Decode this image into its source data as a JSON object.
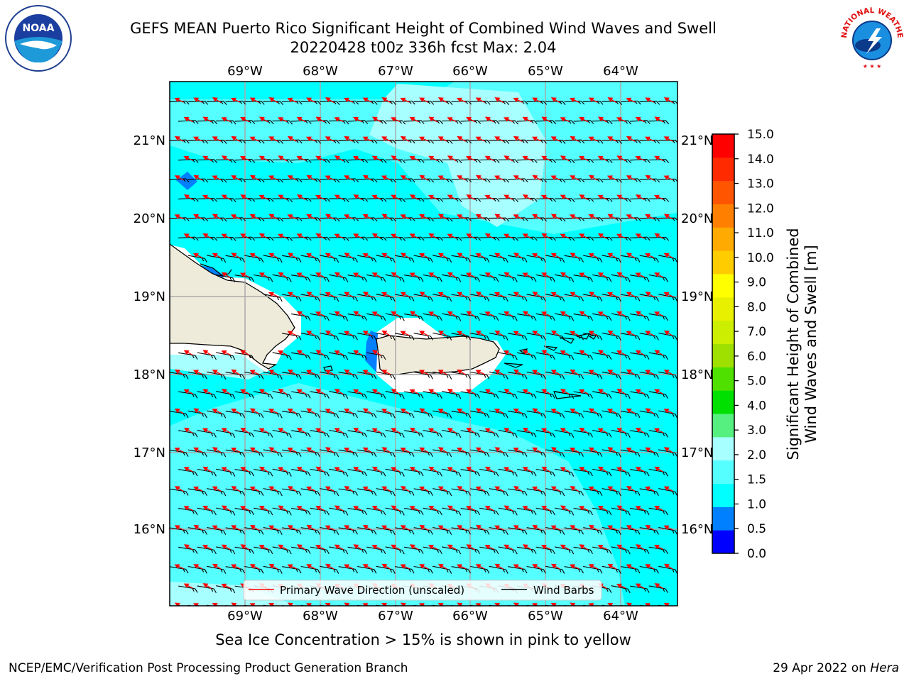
{
  "header": {
    "title_line1": "GEFS MEAN Puerto Rico Significant Height of Combined Wind Waves and Swell",
    "title_line2": "20220428 t00z 336h fcst   Max: 2.04"
  },
  "map": {
    "lon_labels": [
      "69°W",
      "68°W",
      "67°W",
      "66°W",
      "65°W",
      "64°W"
    ],
    "lat_labels": [
      "21°N",
      "20°N",
      "19°N",
      "18°N",
      "17°N",
      "16°N"
    ],
    "land_labels": [],
    "colors": {
      "ocean_base": "#00FFFF",
      "ocean_light": "#55FFFF",
      "ocean_pale": "#A7FFFF",
      "ocean_low": "#0080FF",
      "land": "#EFEBDB",
      "wave_arrow": "#FF0000",
      "wind_barb": "#000000",
      "grid": "#AAAAAA"
    }
  },
  "legend": {
    "wave_label": "Primary Wave Direction (unscaled)",
    "wind_label": "Wind Barbs"
  },
  "colorbar": {
    "label_line1": "Significant Height of Combined",
    "label_line2": "Wind Waves and Swell [m]",
    "ticks": [
      "15.0",
      "14.0",
      "13.0",
      "12.0",
      "11.0",
      "10.0",
      "9.0",
      "8.0",
      "7.0",
      "6.0",
      "5.0",
      "4.0",
      "3.0",
      "2.0",
      "1.5",
      "1.0",
      "0.5",
      "0.0"
    ],
    "bands": [
      "#0000FF",
      "#0080FF",
      "#00FFFF",
      "#55FFFF",
      "#A7FFFF",
      "#55F080",
      "#00E000",
      "#50E000",
      "#A0E000",
      "#CCEE00",
      "#E8F000",
      "#FFFF00",
      "#FFCC00",
      "#FFAA00",
      "#FF8000",
      "#FF5500",
      "#FF2A00",
      "#FF0000"
    ]
  },
  "note": "Sea Ice Concentration > 15% is shown in pink to yellow",
  "footer": {
    "left": "NCEP/EMC/Verification Post Processing Product Generation Branch",
    "right_prefix": "29 Apr 2022 on ",
    "right_host": "Hera"
  },
  "logos": {
    "noaa_text": "NOAA",
    "nws_text": "NATIONAL WEATHER SERVICE"
  }
}
